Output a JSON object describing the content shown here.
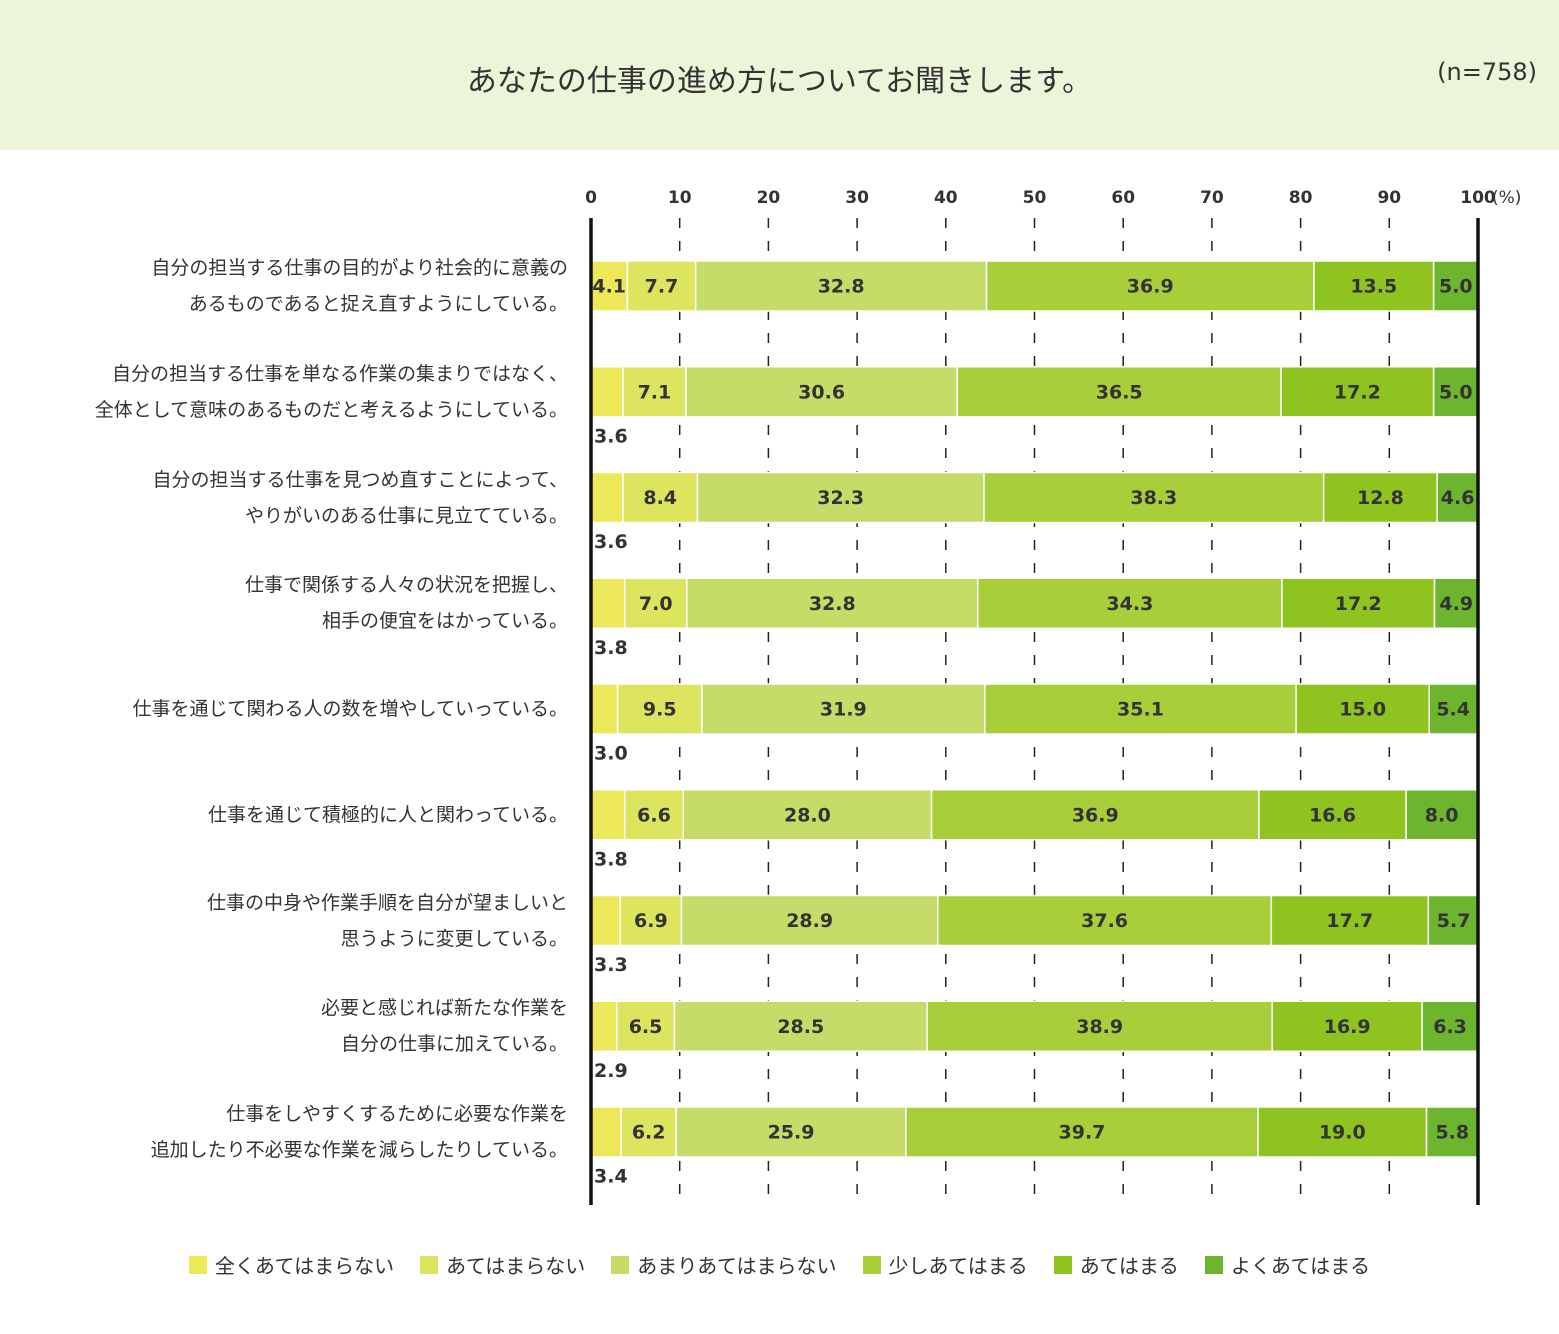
{
  "chart_data": {
    "type": "stacked-barh",
    "title": "あなたの仕事の進め方についてお聞きします。",
    "subtitle": "(n=758)",
    "x_unit": "(%)",
    "xlim": [
      0,
      100
    ],
    "xticks": [
      0,
      10,
      20,
      30,
      40,
      50,
      60,
      70,
      80,
      90,
      100
    ],
    "grid": true,
    "legend": "bottom",
    "categories": [
      "自分の担当する仕事の目的がより社会的に意義の\nあるものであると捉え直すようにしている。",
      "自分の担当する仕事を単なる作業の集まりではなく、\n全体として意味のあるものだと考えるようにしている。",
      "自分の担当する仕事を見つめ直すことによって、\nやりがいのある仕事に見立てている。",
      "仕事で関係する人々の状況を把握し、\n相手の便宜をはかっている。",
      "仕事を通じて関わる人の数を増やしていっている。",
      "仕事を通じて積極的に人と関わっている。",
      "仕事の中身や作業手順を自分が望ましいと\n思うように変更している。",
      "必要と感じれば新たな作業を\n自分の仕事に加えている。",
      "仕事をしやすくするために必要な作業を\n追加したり不必要な作業を減らしたりしている。"
    ],
    "series": [
      {
        "name": "全くあてはまらない",
        "color": "#ede85a",
        "values": [
          4.1,
          3.6,
          3.6,
          3.8,
          3.0,
          3.8,
          3.3,
          2.9,
          3.4
        ],
        "value_labels": [
          "4.1",
          "3.6",
          "3.6",
          "3.8",
          "3.0",
          "3.8",
          "3.3",
          "2.9",
          "3.4"
        ]
      },
      {
        "name": "あてはまらない",
        "color": "#dde45e",
        "values": [
          7.7,
          7.1,
          8.4,
          7.0,
          9.5,
          6.6,
          6.9,
          6.5,
          6.2
        ],
        "value_labels": [
          "7.7",
          "7.1",
          "8.4",
          "7.0",
          "9.5",
          "6.6",
          "6.9",
          "6.5",
          "6.2"
        ]
      },
      {
        "name": "あまりあてはまらない",
        "color": "#c6dc68",
        "values": [
          32.8,
          30.6,
          32.3,
          32.8,
          31.9,
          28.0,
          28.9,
          28.5,
          25.9
        ],
        "value_labels": [
          "32.8",
          "30.6",
          "32.3",
          "32.8",
          "31.9",
          "28.0",
          "28.9",
          "28.5",
          "25.9"
        ]
      },
      {
        "name": "少しあてはまる",
        "color": "#a8ce3a",
        "values": [
          36.9,
          36.5,
          38.3,
          34.3,
          35.1,
          36.9,
          37.6,
          38.9,
          39.7
        ],
        "value_labels": [
          "36.9",
          "36.5",
          "38.3",
          "34.3",
          "35.1",
          "36.9",
          "37.6",
          "38.9",
          "39.7"
        ]
      },
      {
        "name": "あてはまる",
        "color": "#8ec320",
        "values": [
          13.5,
          17.2,
          12.8,
          17.2,
          15.0,
          16.6,
          17.7,
          16.9,
          19.0
        ],
        "value_labels": [
          "13.5",
          "17.2",
          "12.8",
          "17.2",
          "15.0",
          "16.6",
          "17.7",
          "16.9",
          "19.0"
        ]
      },
      {
        "name": "よくあてはまる",
        "color": "#6db52f",
        "values": [
          5.0,
          5.0,
          4.6,
          4.9,
          5.4,
          8.0,
          5.7,
          6.3,
          5.8
        ],
        "value_labels": [
          "5.0",
          "5.0",
          "4.6",
          "4.9",
          "5.4",
          "8.0",
          "5.7",
          "6.3",
          "5.8"
        ]
      }
    ]
  }
}
